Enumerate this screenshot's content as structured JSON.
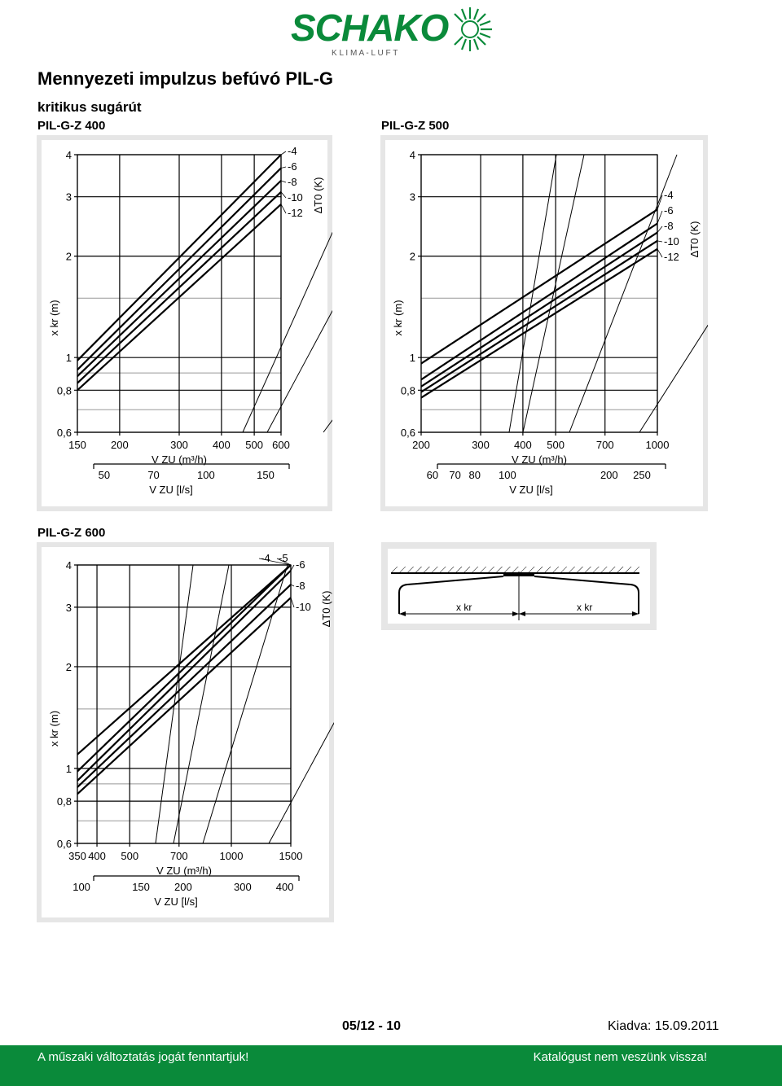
{
  "brand": {
    "name": "SCHAKO",
    "tagline": "K L I M A - L U F T",
    "color": "#0a8a3a"
  },
  "title": "Mennyezeti impulzus befúvó PIL-G",
  "subtitle": "kritikus sugárút",
  "footer": {
    "page_number": "05/12 - 10",
    "edition": "Kiadva: 15.09.2011",
    "left_note": "A műszaki változtatás jogát fenntartjuk!",
    "right_note": "Katalógust nem veszünk vissza!"
  },
  "diagram": {
    "label_left": "x kr",
    "label_right": "x kr"
  },
  "chart_data": [
    {
      "type": "line",
      "title": "PIL-G-Z 400",
      "yscale": "log",
      "xscale": "log",
      "ylim": [
        0.6,
        4
      ],
      "xlim": [
        150,
        600
      ],
      "yticks": [
        "4",
        "3",
        "2",
        "1",
        "0,8",
        "0,6"
      ],
      "xticks": [
        "150",
        "200",
        "300",
        "400",
        "500",
        "600"
      ],
      "x2ticks": [
        "50",
        "70",
        "100",
        "150"
      ],
      "ylabel": "x kr (m)",
      "xlabel": "V ZU (m³/h)",
      "x2label": "V ZU [l/s]",
      "legend_title": "ΔT0 (K)",
      "series": [
        {
          "name": "-4",
          "x": [
            150,
            600
          ],
          "y": [
            0.98,
            4.0
          ]
        },
        {
          "name": "-6",
          "x": [
            150,
            600
          ],
          "y": [
            0.92,
            3.65
          ]
        },
        {
          "name": "-8",
          "x": [
            150,
            600
          ],
          "y": [
            0.88,
            3.35
          ]
        },
        {
          "name": "-10",
          "x": [
            150,
            600
          ],
          "y": [
            0.84,
            3.1
          ]
        },
        {
          "name": "-12",
          "x": [
            150,
            600
          ],
          "y": [
            0.8,
            2.85
          ]
        }
      ]
    },
    {
      "type": "line",
      "title": "PIL-G-Z 500",
      "yscale": "log",
      "xscale": "log",
      "ylim": [
        0.6,
        4
      ],
      "xlim": [
        200,
        1000
      ],
      "yticks": [
        "4",
        "3",
        "2",
        "1",
        "0,8",
        "0,6"
      ],
      "xticks": [
        "200",
        "300",
        "400",
        "500",
        "700",
        "1000"
      ],
      "x2ticks": [
        "60",
        "70",
        "80",
        "100",
        "200",
        "250"
      ],
      "ylabel": "x kr (m)",
      "xlabel": "V ZU (m³/h)",
      "x2label": "V ZU [l/s]",
      "legend_title": "ΔT0 (K)",
      "series": [
        {
          "name": "-4",
          "x": [
            200,
            1000
          ],
          "y": [
            0.96,
            2.75
          ]
        },
        {
          "name": "-6",
          "x": [
            200,
            1000
          ],
          "y": [
            0.86,
            2.5
          ]
        },
        {
          "name": "-8",
          "x": [
            200,
            1000
          ],
          "y": [
            0.82,
            2.35
          ]
        },
        {
          "name": "-10",
          "x": [
            200,
            1000
          ],
          "y": [
            0.79,
            2.22
          ]
        },
        {
          "name": "-12",
          "x": [
            200,
            1000
          ],
          "y": [
            0.76,
            2.1
          ]
        }
      ]
    },
    {
      "type": "line",
      "title": "PIL-G-Z 600",
      "yscale": "log",
      "xscale": "log",
      "ylim": [
        0.6,
        4
      ],
      "xlim": [
        350,
        1500
      ],
      "yticks": [
        "4",
        "3",
        "2",
        "1",
        "0,8",
        "0,6"
      ],
      "xticks": [
        "350",
        "400",
        "500",
        "700",
        "1000",
        "1500"
      ],
      "x2ticks": [
        "100",
        "150",
        "200",
        "300",
        "400"
      ],
      "ylabel": "x kr (m)",
      "xlabel": "V ZU (m³/h)",
      "x2label": "V ZU [l/s]",
      "legend_title": "ΔT0 (K)",
      "series": [
        {
          "name": "-4",
          "x": [
            350,
            1500
          ],
          "y": [
            1.1,
            4.0
          ]
        },
        {
          "name": "-5",
          "x": [
            350,
            1500
          ],
          "y": [
            0.98,
            4.0
          ]
        },
        {
          "name": "-6",
          "x": [
            350,
            1500
          ],
          "y": [
            0.92,
            3.85
          ]
        },
        {
          "name": "-8",
          "x": [
            350,
            1500
          ],
          "y": [
            0.88,
            3.5
          ]
        },
        {
          "name": "-10",
          "x": [
            350,
            1500
          ],
          "y": [
            0.84,
            3.2
          ]
        }
      ]
    }
  ]
}
